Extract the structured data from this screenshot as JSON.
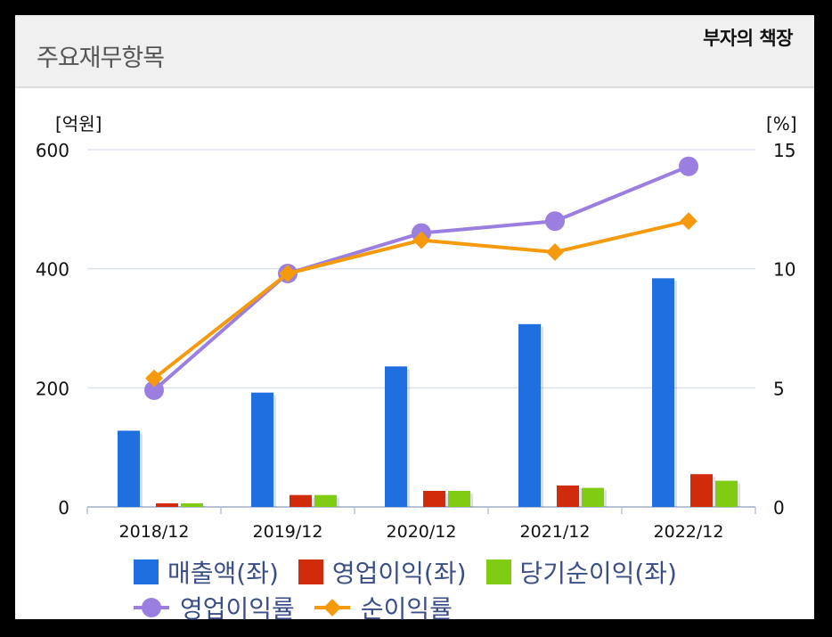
{
  "header": {
    "title": "주요재무항목"
  },
  "watermark": "부자의 책장",
  "chart_data": {
    "type": "bar",
    "title": "주요재무항목",
    "categories": [
      "2018/12",
      "2019/12",
      "2020/12",
      "2021/12",
      "2022/12"
    ],
    "left_axis": {
      "unit_label": "[억원]",
      "ylim": [
        0,
        600
      ],
      "ticks": [
        "0",
        "200",
        "400",
        "600"
      ]
    },
    "right_axis": {
      "unit_label": "[%]",
      "ylim": [
        0,
        15
      ],
      "ticks": [
        "0",
        "5",
        "10",
        "15"
      ]
    },
    "grid": true,
    "legend_placement": "bottom",
    "series": [
      {
        "name": "매출액(좌)",
        "type": "bar",
        "axis": "left",
        "color": "#1f6fe0",
        "values": [
          128,
          192,
          236,
          307,
          384
        ]
      },
      {
        "name": "영업이익(좌)",
        "type": "bar",
        "axis": "left",
        "color": "#d02c0c",
        "values": [
          6,
          20,
          27,
          36,
          55
        ]
      },
      {
        "name": "당기순이익(좌)",
        "type": "bar",
        "axis": "left",
        "color": "#7fcc12",
        "values": [
          6,
          20,
          27,
          32,
          44
        ]
      },
      {
        "name": "영업이익률",
        "type": "line",
        "axis": "right",
        "color": "#9b7fe0",
        "marker": "circle",
        "values": [
          4.9,
          9.8,
          11.5,
          12.0,
          14.3
        ]
      },
      {
        "name": "순이익률",
        "type": "line",
        "axis": "right",
        "color": "#f59a0c",
        "marker": "diamond",
        "values": [
          5.4,
          9.8,
          11.2,
          10.7,
          12.0
        ]
      }
    ]
  }
}
